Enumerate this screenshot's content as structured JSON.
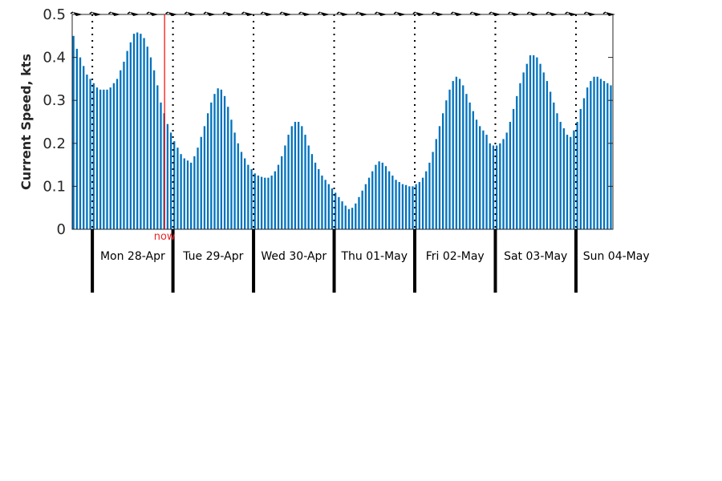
{
  "chart_data": {
    "type": "bar",
    "ylabel": "Current Speed, kts",
    "ylim": [
      0,
      0.5
    ],
    "yticks": [
      "0",
      "0.1",
      "0.2",
      "0.3",
      "0.4",
      "0.5"
    ],
    "bar_color": "#0072bd",
    "day_labels": [
      "Mon 28-Apr",
      "Tue 29-Apr",
      "Wed 30-Apr",
      "Thu 01-May",
      "Fri 02-May",
      "Sat 03-May",
      "Sun 04-May"
    ],
    "now_label": "now",
    "now_color": "#ff0000",
    "values": [
      0.45,
      0.42,
      0.4,
      0.38,
      0.36,
      0.35,
      0.34,
      0.33,
      0.325,
      0.325,
      0.325,
      0.33,
      0.34,
      0.35,
      0.37,
      0.39,
      0.415,
      0.435,
      0.455,
      0.458,
      0.455,
      0.445,
      0.425,
      0.4,
      0.37,
      0.335,
      0.295,
      0.27,
      0.245,
      0.225,
      0.205,
      0.19,
      0.175,
      0.165,
      0.16,
      0.155,
      0.17,
      0.19,
      0.215,
      0.24,
      0.27,
      0.295,
      0.315,
      0.328,
      0.325,
      0.31,
      0.285,
      0.255,
      0.225,
      0.2,
      0.18,
      0.165,
      0.15,
      0.14,
      0.13,
      0.125,
      0.122,
      0.12,
      0.12,
      0.125,
      0.135,
      0.15,
      0.17,
      0.195,
      0.22,
      0.24,
      0.25,
      0.25,
      0.24,
      0.22,
      0.195,
      0.175,
      0.155,
      0.14,
      0.125,
      0.115,
      0.105,
      0.095,
      0.085,
      0.075,
      0.065,
      0.055,
      0.047,
      0.05,
      0.06,
      0.075,
      0.09,
      0.105,
      0.12,
      0.135,
      0.15,
      0.158,
      0.155,
      0.147,
      0.135,
      0.125,
      0.115,
      0.11,
      0.105,
      0.103,
      0.1,
      0.1,
      0.105,
      0.11,
      0.12,
      0.135,
      0.155,
      0.18,
      0.21,
      0.24,
      0.27,
      0.3,
      0.325,
      0.345,
      0.355,
      0.35,
      0.335,
      0.315,
      0.295,
      0.275,
      0.255,
      0.24,
      0.23,
      0.22,
      0.2,
      0.195,
      0.195,
      0.2,
      0.21,
      0.225,
      0.25,
      0.28,
      0.31,
      0.34,
      0.365,
      0.385,
      0.405,
      0.405,
      0.4,
      0.385,
      0.365,
      0.345,
      0.32,
      0.295,
      0.27,
      0.25,
      0.235,
      0.22,
      0.215,
      0.23,
      0.25,
      0.28,
      0.305,
      0.33,
      0.345,
      0.355,
      0.355,
      0.35,
      0.345,
      0.34,
      0.335
    ],
    "day_boundaries_index": [
      6,
      30,
      54,
      78,
      102,
      126,
      150
    ],
    "now_index": 27.5
  }
}
